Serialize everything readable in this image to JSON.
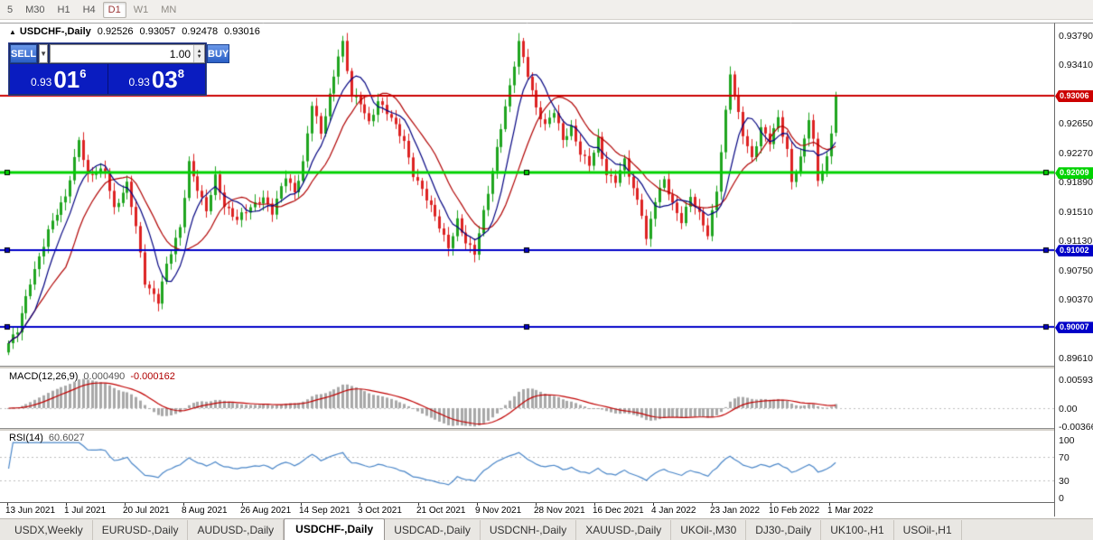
{
  "toolbar": {
    "timeframes": [
      {
        "label": "5",
        "active": false
      },
      {
        "label": "M30",
        "active": false
      },
      {
        "label": "H1",
        "active": false
      },
      {
        "label": "H4",
        "active": false
      },
      {
        "label": "D1",
        "active": true
      },
      {
        "label": "W1",
        "active": false
      },
      {
        "label": "MN",
        "active": false
      }
    ]
  },
  "chart": {
    "title_icon": "▲",
    "symbol_title": "USDCHF-,Daily",
    "ohlc": {
      "open": "0.92526",
      "high": "0.93057",
      "low": "0.92478",
      "close": "0.93016"
    },
    "trade_panel": {
      "sell_label": "SELL",
      "buy_label": "BUY",
      "volume": "1.00",
      "sell_price": {
        "small": "0.93",
        "big": "01",
        "sup": "6"
      },
      "buy_price": {
        "small": "0.93",
        "big": "03",
        "sup": "8"
      }
    },
    "colors": {
      "candle_up": "#1fa51f",
      "candle_down": "#dd2222",
      "ma_fast": "#000080",
      "ma_slow": "#b00000",
      "macd_histogram": "#a8a8a8",
      "macd_signal": "#c00000",
      "rsi_line": "#4a86c8",
      "level_dash": "#bdbdbd"
    },
    "hlines": [
      {
        "price": "0.93006",
        "color": "#cc0000",
        "width": 2,
        "selected": false
      },
      {
        "price": "0.92009",
        "color": "#00d200",
        "width": 3,
        "selected": true
      },
      {
        "price": "0.91002",
        "color": "#0000c8",
        "width": 2,
        "selected": true
      },
      {
        "price": "0.90007",
        "color": "#0000c8",
        "width": 2,
        "selected": true
      }
    ],
    "price_axis": {
      "labels": [
        "0.93790",
        "0.93410",
        "0.93030",
        "0.92650",
        "0.92270",
        "0.91890",
        "0.91510",
        "0.91130",
        "0.90750",
        "0.90370",
        "0.89990",
        "0.89610"
      ]
    },
    "date_axis": [
      "13 Jun 2021",
      "1 Jul 2021",
      "20 Jul 2021",
      "8 Aug 2021",
      "26 Aug 2021",
      "14 Sep 2021",
      "3 Oct 2021",
      "21 Oct 2021",
      "9 Nov 2021",
      "28 Nov 2021",
      "16 Dec 2021",
      "4 Jan 2022",
      "23 Jan 2022",
      "10 Feb 2022",
      "1 Mar 2022"
    ],
    "indicators": {
      "macd": {
        "label": "MACD(12,26,9)",
        "value1": "0.000490",
        "value2": "-0.000162",
        "axis": [
          "0.00593",
          "0.00",
          "-0.00366"
        ]
      },
      "rsi": {
        "label": "RSI(14)",
        "value": "60.6027",
        "axis": [
          "100",
          "70",
          "30",
          "0"
        ]
      }
    }
  },
  "chart_data": {
    "type": "candlestick",
    "symbol": "USDCHF-",
    "timeframe": "Daily",
    "bars": 189,
    "visible_price_range": [
      0.8945,
      0.9395
    ],
    "last_bar": {
      "open": 0.92526,
      "high": 0.93057,
      "low": 0.92478,
      "close": 0.93016
    },
    "close_anchors": [
      [
        0,
        0.898
      ],
      [
        2,
        0.8995
      ],
      [
        5,
        0.906
      ],
      [
        9,
        0.9125
      ],
      [
        13,
        0.917
      ],
      [
        16,
        0.9245
      ],
      [
        18,
        0.9195
      ],
      [
        22,
        0.9205
      ],
      [
        24,
        0.9155
      ],
      [
        27,
        0.9185
      ],
      [
        29,
        0.913
      ],
      [
        31,
        0.906
      ],
      [
        34,
        0.9035
      ],
      [
        36,
        0.908
      ],
      [
        39,
        0.913
      ],
      [
        41,
        0.9215
      ],
      [
        43,
        0.918
      ],
      [
        45,
        0.915
      ],
      [
        47,
        0.9195
      ],
      [
        49,
        0.916
      ],
      [
        52,
        0.914
      ],
      [
        55,
        0.9155
      ],
      [
        58,
        0.917
      ],
      [
        60,
        0.915
      ],
      [
        63,
        0.9195
      ],
      [
        65,
        0.9175
      ],
      [
        67,
        0.9215
      ],
      [
        69,
        0.929
      ],
      [
        71,
        0.925
      ],
      [
        73,
        0.93
      ],
      [
        75,
        0.9355
      ],
      [
        76,
        0.937
      ],
      [
        78,
        0.93
      ],
      [
        80,
        0.929
      ],
      [
        82,
        0.9265
      ],
      [
        84,
        0.9295
      ],
      [
        86,
        0.928
      ],
      [
        88,
        0.926
      ],
      [
        90,
        0.924
      ],
      [
        92,
        0.92
      ],
      [
        94,
        0.918
      ],
      [
        96,
        0.9155
      ],
      [
        98,
        0.913
      ],
      [
        100,
        0.9105
      ],
      [
        102,
        0.914
      ],
      [
        104,
        0.911
      ],
      [
        106,
        0.9095
      ],
      [
        108,
        0.915
      ],
      [
        110,
        0.9205
      ],
      [
        112,
        0.926
      ],
      [
        114,
        0.931
      ],
      [
        116,
        0.937
      ],
      [
        118,
        0.933
      ],
      [
        120,
        0.9285
      ],
      [
        122,
        0.926
      ],
      [
        124,
        0.928
      ],
      [
        126,
        0.9245
      ],
      [
        128,
        0.926
      ],
      [
        130,
        0.9225
      ],
      [
        132,
        0.921
      ],
      [
        134,
        0.9245
      ],
      [
        136,
        0.92
      ],
      [
        138,
        0.919
      ],
      [
        140,
        0.9215
      ],
      [
        142,
        0.918
      ],
      [
        144,
        0.915
      ],
      [
        145,
        0.9115
      ],
      [
        147,
        0.9165
      ],
      [
        149,
        0.919
      ],
      [
        151,
        0.916
      ],
      [
        153,
        0.914
      ],
      [
        155,
        0.917
      ],
      [
        157,
        0.9145
      ],
      [
        159,
        0.912
      ],
      [
        161,
        0.918
      ],
      [
        163,
        0.928
      ],
      [
        164,
        0.933
      ],
      [
        165,
        0.93
      ],
      [
        167,
        0.925
      ],
      [
        169,
        0.922
      ],
      [
        171,
        0.926
      ],
      [
        173,
        0.924
      ],
      [
        175,
        0.927
      ],
      [
        177,
        0.923
      ],
      [
        178,
        0.919
      ],
      [
        180,
        0.922
      ],
      [
        182,
        0.927
      ],
      [
        183,
        0.924
      ],
      [
        184,
        0.919
      ],
      [
        186,
        0.922
      ],
      [
        187,
        0.9255
      ],
      [
        188,
        0.9302
      ]
    ]
  },
  "tabs": {
    "items": [
      "USDX,Weekly",
      "EURUSD-,Daily",
      "AUDUSD-,Daily",
      "USDCHF-,Daily",
      "USDCAD-,Daily",
      "USDCNH-,Daily",
      "XAUUSD-,Daily",
      "UKOil-,M30",
      "DJ30-,Daily",
      "UK100-,H1",
      "USOil-,H1"
    ],
    "active": "USDCHF-,Daily"
  }
}
